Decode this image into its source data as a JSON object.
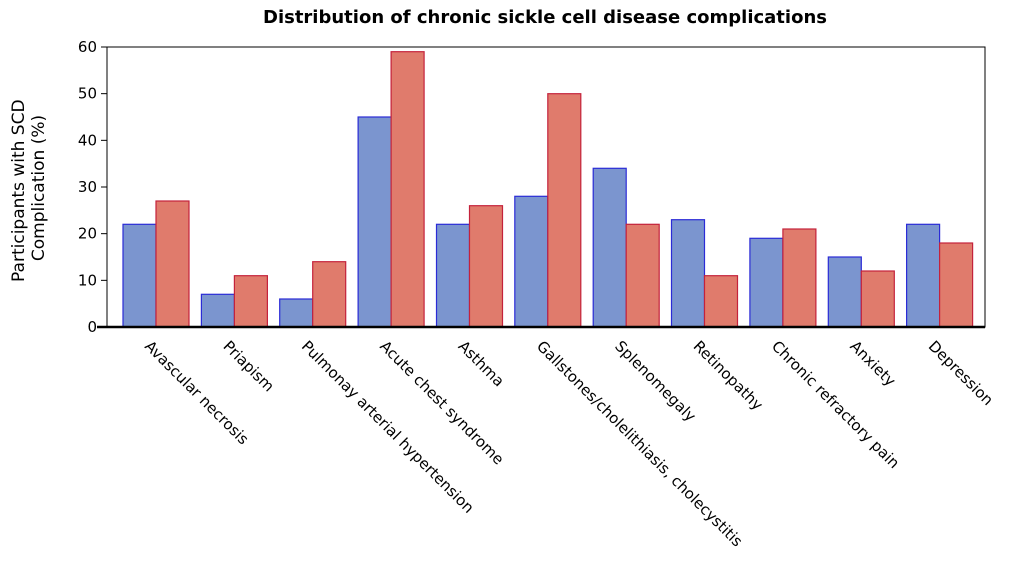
{
  "chart_data": {
    "type": "bar",
    "title": "Distribution of chronic sickle cell disease complications",
    "ylabel_lines": [
      "Participants with SCD",
      "Complication (%)"
    ],
    "ylim": [
      0,
      60
    ],
    "yticks": [
      0,
      10,
      20,
      30,
      40,
      50,
      60
    ],
    "grid": false,
    "categories": [
      "Avascular necrosis",
      "Priapism",
      "Pulmonay arterial hypertension",
      "Acute chest syndrome",
      "Asthma",
      "Gallstones/cholelithiasis, cholecystitis",
      "Splenomegaly",
      "Retinopathy",
      "Chronic refractory pain",
      "Anxiety",
      "Depression"
    ],
    "series": [
      {
        "values": [
          22,
          7,
          6,
          45,
          22,
          28,
          34,
          23,
          19,
          15,
          22
        ],
        "fill": "#7b95cf",
        "stroke": "#2b2bd6"
      },
      {
        "values": [
          27,
          11,
          14,
          59,
          26,
          50,
          22,
          11,
          21,
          12,
          18
        ],
        "fill": "#e07b6c",
        "stroke": "#c4223b"
      }
    ]
  }
}
